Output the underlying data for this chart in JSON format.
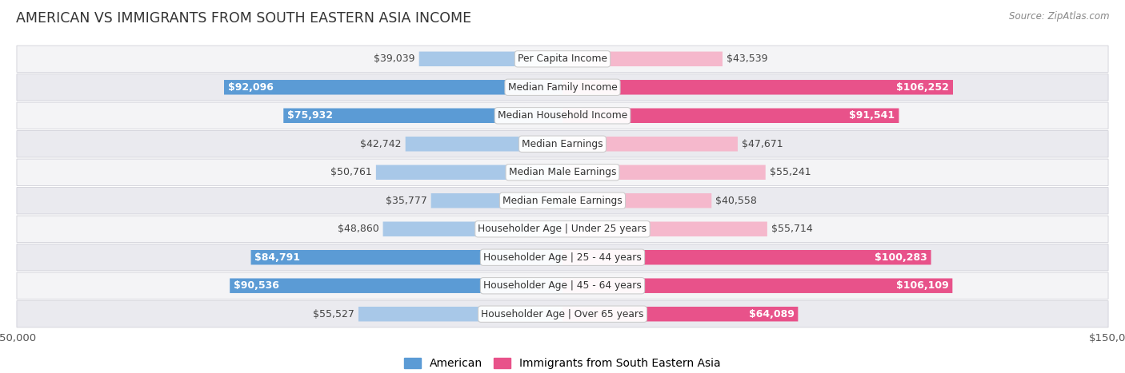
{
  "title": "AMERICAN VS IMMIGRANTS FROM SOUTH EASTERN ASIA INCOME",
  "source": "Source: ZipAtlas.com",
  "categories": [
    "Per Capita Income",
    "Median Family Income",
    "Median Household Income",
    "Median Earnings",
    "Median Male Earnings",
    "Median Female Earnings",
    "Householder Age | Under 25 years",
    "Householder Age | 25 - 44 years",
    "Householder Age | 45 - 64 years",
    "Householder Age | Over 65 years"
  ],
  "american_values": [
    39039,
    92096,
    75932,
    42742,
    50761,
    35777,
    48860,
    84791,
    90536,
    55527
  ],
  "immigrant_values": [
    43539,
    106252,
    91541,
    47671,
    55241,
    40558,
    55714,
    100283,
    106109,
    64089
  ],
  "american_labels": [
    "$39,039",
    "$92,096",
    "$75,932",
    "$42,742",
    "$50,761",
    "$35,777",
    "$48,860",
    "$84,791",
    "$90,536",
    "$55,527"
  ],
  "immigrant_labels": [
    "$43,539",
    "$106,252",
    "$91,541",
    "$47,671",
    "$55,241",
    "$40,558",
    "$55,714",
    "$100,283",
    "$106,109",
    "$64,089"
  ],
  "american_color_light": "#a8c8e8",
  "american_color_dark": "#5b9bd5",
  "immigrant_color_light": "#f5b8cc",
  "immigrant_color_dark": "#e8528a",
  "max_value": 150000,
  "bar_height": 0.52,
  "label_fontsize": 9.0,
  "cat_fontsize": 8.8,
  "title_fontsize": 12.5,
  "legend_fontsize": 10,
  "inside_label_threshold": 60000,
  "row_colors": [
    "#f4f4f6",
    "#eaeaef"
  ],
  "row_border_color": "#d0d0d8"
}
